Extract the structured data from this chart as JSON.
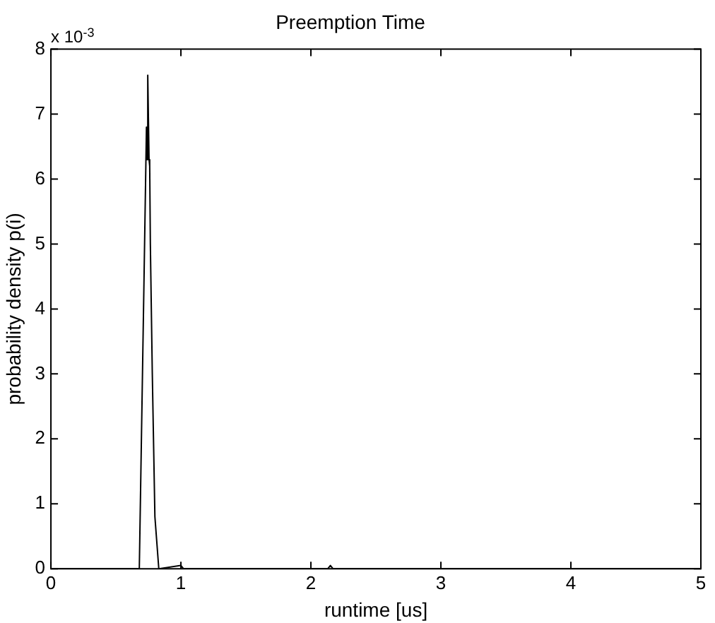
{
  "chart_data": {
    "type": "line",
    "title": "Preemption Time",
    "xlabel": "runtime [us]",
    "ylabel": "probability density p(i)",
    "annotations": [
      "x 10$^{-3}$"
    ],
    "x": [
      0,
      0.68,
      0.715,
      0.735,
      0.74,
      0.745,
      0.755,
      0.76,
      0.765,
      0.78,
      0.8,
      0.83,
      1.0,
      1.02,
      2.13,
      2.15,
      2.17,
      5
    ],
    "series": [
      {
        "color": "#000000",
        "values": [
          0,
          0,
          4.3,
          6.8,
          6.3,
          7.6,
          6.3,
          6.2,
          5.0,
          3.0,
          0.8,
          0,
          0.05,
          0,
          0,
          0.05,
          0,
          0
        ]
      }
    ],
    "xlim": [
      0,
      5
    ],
    "xticks": [
      0,
      1,
      2,
      3,
      4,
      5
    ],
    "ylim": [
      0,
      8
    ],
    "yticks": [
      0,
      1,
      2,
      3,
      4,
      5,
      6,
      7,
      8
    ],
    "grid": false,
    "legend": false,
    "marker": "none",
    "line_style": "solid"
  }
}
